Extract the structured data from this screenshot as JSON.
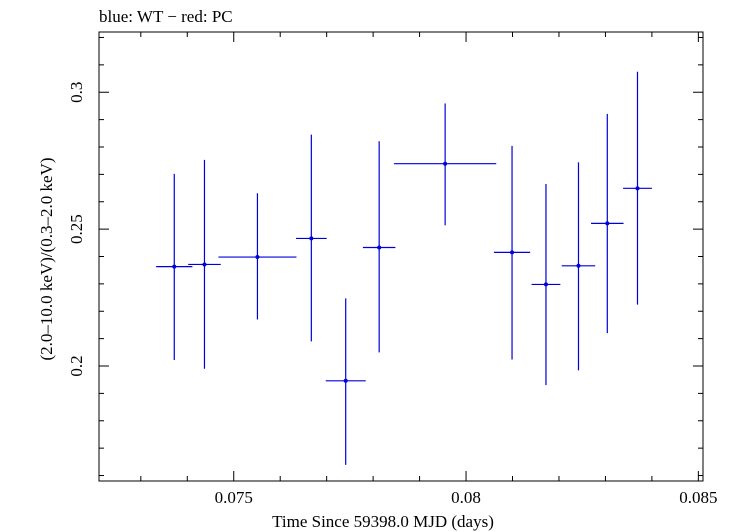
{
  "chart_data": {
    "type": "scatter",
    "title": "blue: WT − red: PC",
    "xlabel": "Time Since 59398.0 MJD (days)",
    "ylabel": "(2.0–10.0 keV)/(0.3–2.0 keV)",
    "xlim": [
      0.0721,
      0.0851
    ],
    "ylim": [
      0.158,
      0.322
    ],
    "x_ticks": [
      0.075,
      0.08,
      0.085
    ],
    "x_tick_labels": [
      "0.075",
      "0.08",
      "0.085"
    ],
    "y_ticks": [
      0.2,
      0.25,
      0.3
    ],
    "y_tick_labels": [
      "0.2",
      "0.25",
      "0.3"
    ],
    "grid": false,
    "series": [
      {
        "color": "#0000dd",
        "points": [
          {
            "x": 0.07372,
            "xerr": 0.00039,
            "y": 0.2363,
            "yerr_low": 0.0341,
            "yerr_high": 0.0339
          },
          {
            "x": 0.07437,
            "xerr": 0.00035,
            "y": 0.2371,
            "yerr_low": 0.0381,
            "yerr_high": 0.0382
          },
          {
            "x": 0.07551,
            "xerr": 0.00084,
            "y": 0.2398,
            "yerr_low": 0.0228,
            "yerr_high": 0.0233
          },
          {
            "x": 0.07667,
            "xerr": 0.00033,
            "y": 0.2466,
            "yerr_low": 0.0376,
            "yerr_high": 0.0379
          },
          {
            "x": 0.07741,
            "xerr": 0.00043,
            "y": 0.1946,
            "yerr_low": 0.0307,
            "yerr_high": 0.0301
          },
          {
            "x": 0.07813,
            "xerr": 0.00035,
            "y": 0.2433,
            "yerr_low": 0.0383,
            "yerr_high": 0.0388
          },
          {
            "x": 0.07955,
            "xerr": 0.0011,
            "y": 0.2739,
            "yerr_low": 0.0225,
            "yerr_high": 0.022
          },
          {
            "x": 0.08099,
            "xerr": 0.00039,
            "y": 0.2415,
            "yerr_low": 0.0391,
            "yerr_high": 0.0389
          },
          {
            "x": 0.08172,
            "xerr": 0.00031,
            "y": 0.2298,
            "yerr_low": 0.0368,
            "yerr_high": 0.0367
          },
          {
            "x": 0.08242,
            "xerr": 0.00036,
            "y": 0.2366,
            "yerr_low": 0.0382,
            "yerr_high": 0.0378
          },
          {
            "x": 0.08304,
            "xerr": 0.00035,
            "y": 0.2521,
            "yerr_low": 0.0401,
            "yerr_high": 0.04
          },
          {
            "x": 0.08369,
            "xerr": 0.00031,
            "y": 0.2649,
            "yerr_low": 0.0425,
            "yerr_high": 0.0426
          }
        ]
      }
    ]
  }
}
